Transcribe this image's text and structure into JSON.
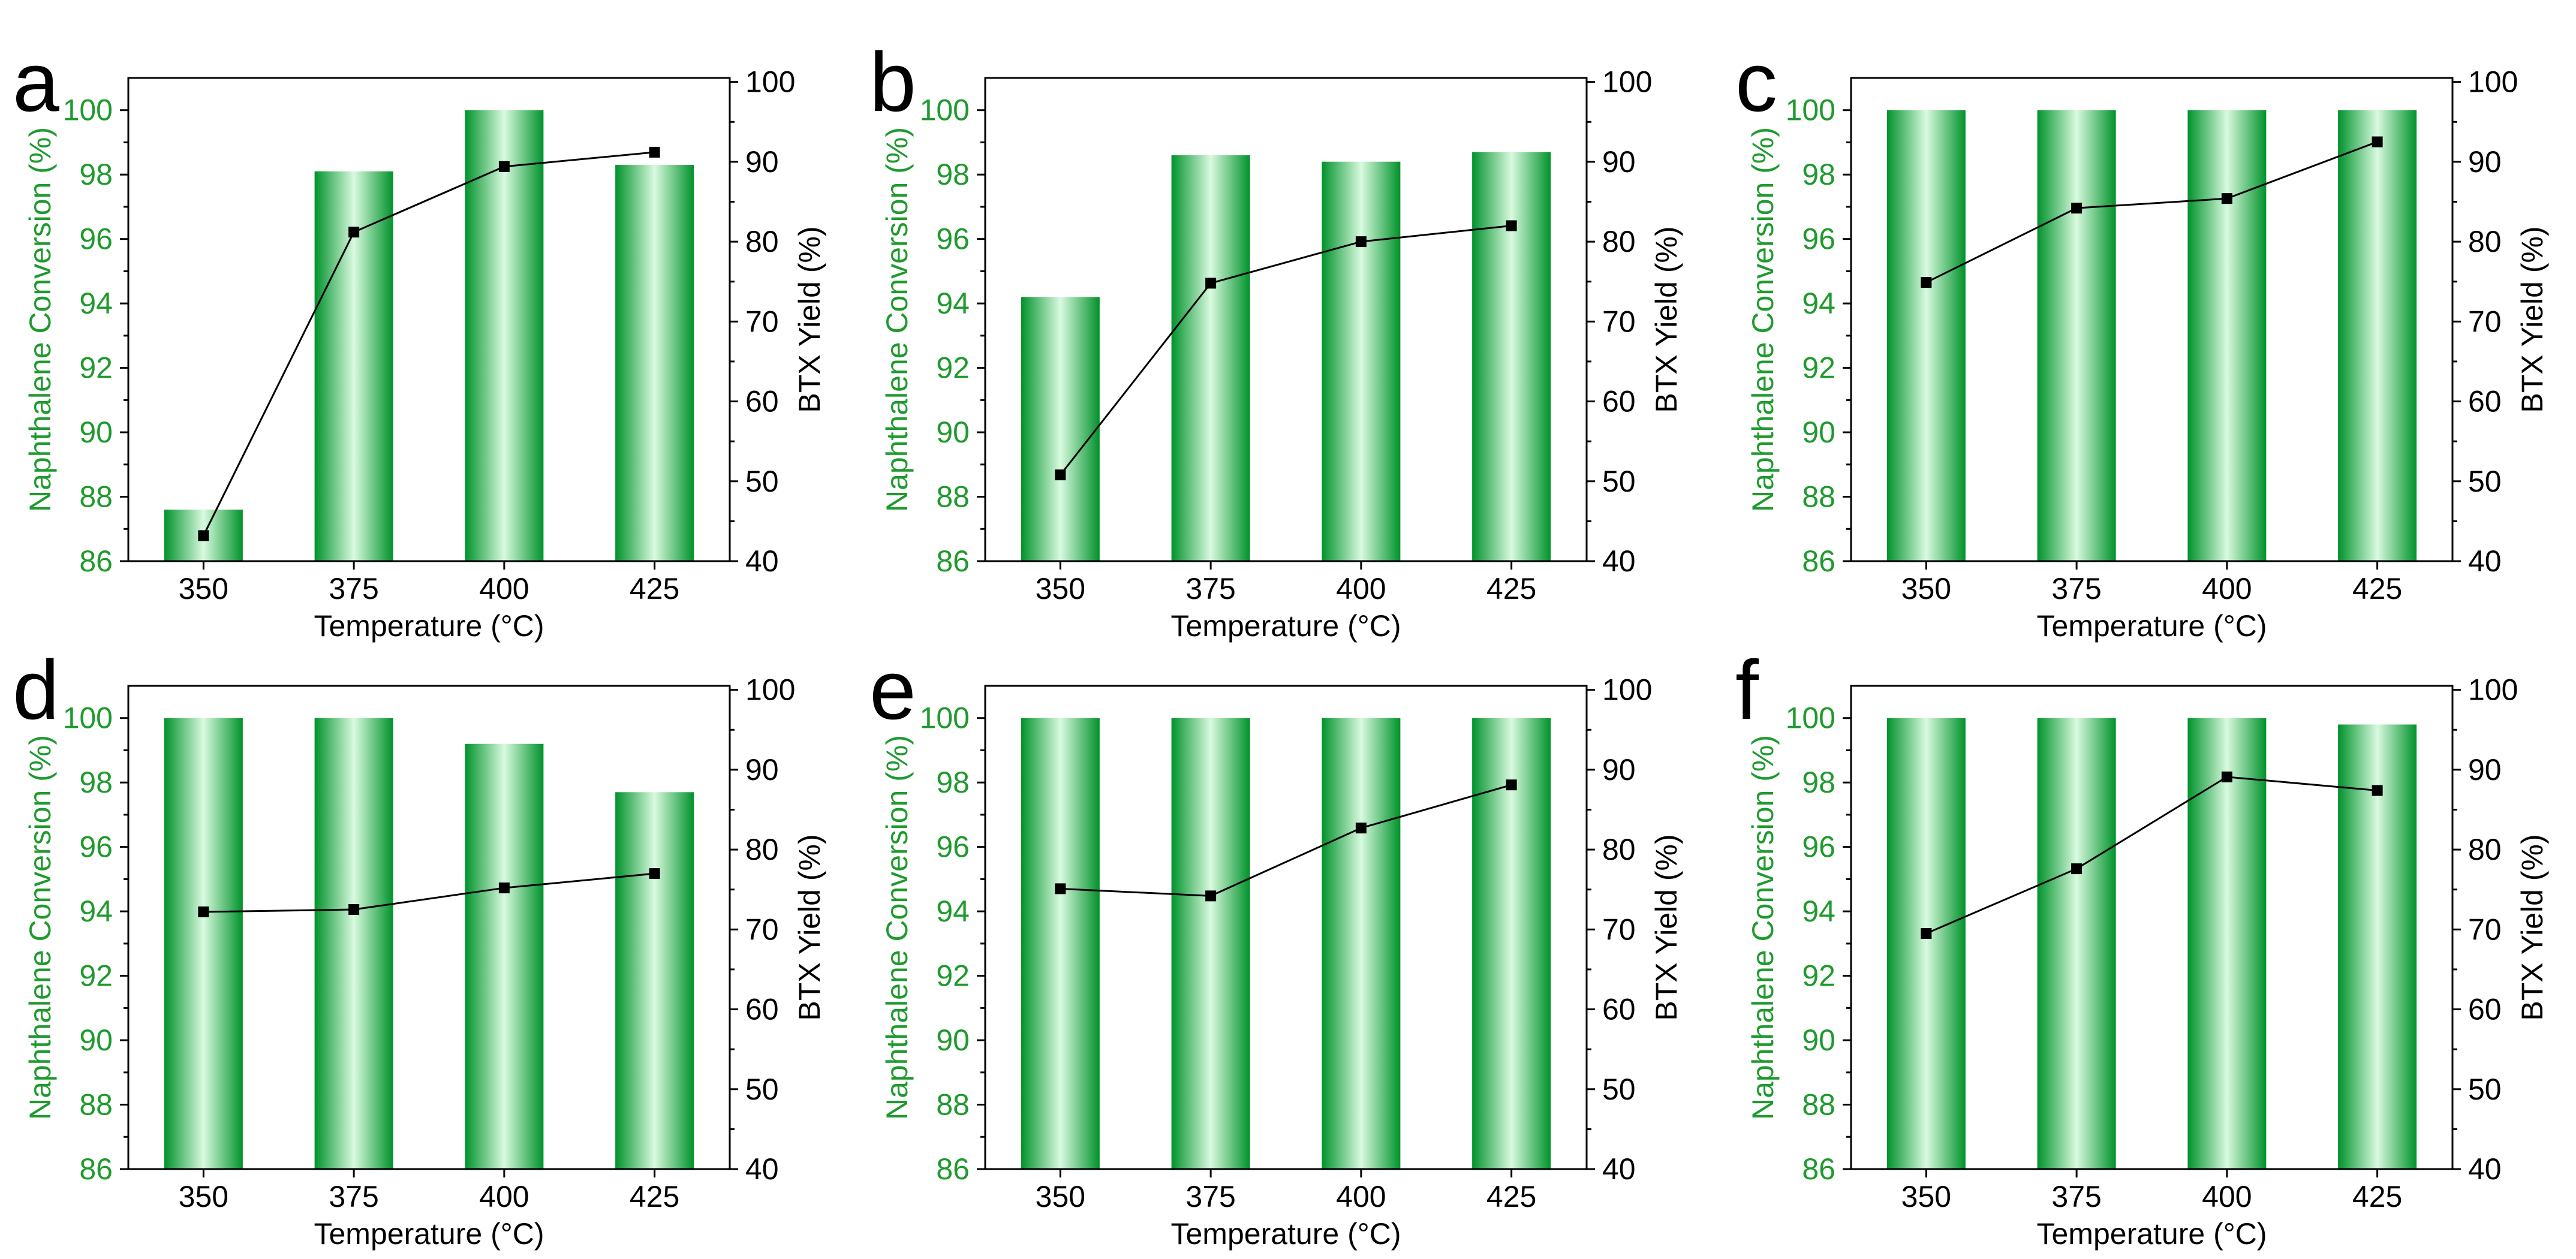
{
  "colors": {
    "bar_edge": "#00922b",
    "bar_center": "#d9fadf",
    "left_axis_text": "#1f9a2e",
    "line": "#000000"
  },
  "chart_data": [
    {
      "panel": "a",
      "type": "bar+line",
      "categories": [
        "350",
        "375",
        "400",
        "425"
      ],
      "series": [
        {
          "name": "Naphthalene Conversion (%)",
          "axis": "left",
          "type": "bar",
          "values": [
            87.6,
            98.1,
            100.0,
            98.3
          ]
        },
        {
          "name": "BTX Yield (%)",
          "axis": "right",
          "type": "line",
          "marker": "square",
          "values": [
            43.2,
            81.2,
            89.4,
            91.2
          ]
        }
      ],
      "xlabel": "Temperature (°C)",
      "ylabel_left": "Naphthalene Conversion (%)",
      "ylabel_right": "BTX Yield (%)",
      "ylim_left": [
        86,
        101
      ],
      "ylim_right": [
        40,
        100.5
      ],
      "yticks_left": [
        86,
        88,
        90,
        92,
        94,
        96,
        98,
        100
      ],
      "yticks_right": [
        40,
        50,
        60,
        70,
        80,
        90,
        100
      ]
    },
    {
      "panel": "b",
      "type": "bar+line",
      "categories": [
        "350",
        "375",
        "400",
        "425"
      ],
      "series": [
        {
          "name": "Naphthalene Conversion (%)",
          "axis": "left",
          "type": "bar",
          "values": [
            94.2,
            98.6,
            98.4,
            98.7
          ]
        },
        {
          "name": "BTX Yield (%)",
          "axis": "right",
          "type": "line",
          "marker": "square",
          "values": [
            50.8,
            74.8,
            80.0,
            82.0
          ]
        }
      ],
      "xlabel": "Temperature (°C)",
      "ylabel_left": "Naphthalene Conversion (%)",
      "ylabel_right": "BTX Yield (%)",
      "ylim_left": [
        86,
        101
      ],
      "ylim_right": [
        40,
        100.5
      ],
      "yticks_left": [
        86,
        88,
        90,
        92,
        94,
        96,
        98,
        100
      ],
      "yticks_right": [
        40,
        50,
        60,
        70,
        80,
        90,
        100
      ]
    },
    {
      "panel": "c",
      "type": "bar+line",
      "categories": [
        "350",
        "375",
        "400",
        "425"
      ],
      "series": [
        {
          "name": "Naphthalene Conversion (%)",
          "axis": "left",
          "type": "bar",
          "values": [
            100.0,
            100.0,
            100.0,
            100.0
          ]
        },
        {
          "name": "BTX Yield (%)",
          "axis": "right",
          "type": "line",
          "marker": "square",
          "values": [
            74.9,
            84.2,
            85.4,
            92.5
          ]
        }
      ],
      "xlabel": "Temperature (°C)",
      "ylabel_left": "Naphthalene Conversion (%)",
      "ylabel_right": "BTX Yield (%)",
      "ylim_left": [
        86,
        101
      ],
      "ylim_right": [
        40,
        100.5
      ],
      "yticks_left": [
        86,
        88,
        90,
        92,
        94,
        96,
        98,
        100
      ],
      "yticks_right": [
        40,
        50,
        60,
        70,
        80,
        90,
        100
      ]
    },
    {
      "panel": "d",
      "type": "bar+line",
      "categories": [
        "350",
        "375",
        "400",
        "425"
      ],
      "series": [
        {
          "name": "Naphthalene Conversion (%)",
          "axis": "left",
          "type": "bar",
          "values": [
            100.0,
            100.0,
            99.2,
            97.7
          ]
        },
        {
          "name": "BTX Yield (%)",
          "axis": "right",
          "type": "line",
          "marker": "square",
          "values": [
            72.2,
            72.5,
            75.2,
            77.0
          ]
        }
      ],
      "xlabel": "Temperature (°C)",
      "ylabel_left": "Naphthalene Conversion (%)",
      "ylabel_right": "BTX Yield (%)",
      "ylim_left": [
        86,
        101
      ],
      "ylim_right": [
        40,
        100.5
      ],
      "yticks_left": [
        86,
        88,
        90,
        92,
        94,
        96,
        98,
        100
      ],
      "yticks_right": [
        40,
        50,
        60,
        70,
        80,
        90,
        100
      ]
    },
    {
      "panel": "e",
      "type": "bar+line",
      "categories": [
        "350",
        "375",
        "400",
        "425"
      ],
      "series": [
        {
          "name": "Naphthalene Conversion (%)",
          "axis": "left",
          "type": "bar",
          "values": [
            100.0,
            100.0,
            100.0,
            100.0
          ]
        },
        {
          "name": "BTX Yield (%)",
          "axis": "right",
          "type": "line",
          "marker": "square",
          "values": [
            75.1,
            74.2,
            82.7,
            88.1
          ]
        }
      ],
      "xlabel": "Temperature (°C)",
      "ylabel_left": "Naphthalene Conversion (%)",
      "ylabel_right": "BTX Yield (%)",
      "ylim_left": [
        86,
        101
      ],
      "ylim_right": [
        40,
        100.5
      ],
      "yticks_left": [
        86,
        88,
        90,
        92,
        94,
        96,
        98,
        100
      ],
      "yticks_right": [
        40,
        50,
        60,
        70,
        80,
        90,
        100
      ]
    },
    {
      "panel": "f",
      "type": "bar+line",
      "categories": [
        "350",
        "375",
        "400",
        "425"
      ],
      "series": [
        {
          "name": "Naphthalene Conversion (%)",
          "axis": "left",
          "type": "bar",
          "values": [
            100.0,
            100.0,
            100.0,
            99.8
          ]
        },
        {
          "name": "BTX Yield (%)",
          "axis": "right",
          "type": "line",
          "marker": "square",
          "values": [
            69.5,
            77.6,
            89.1,
            87.4
          ]
        }
      ],
      "xlabel": "Temperature (°C)",
      "ylabel_left": "Naphthalene Conversion (%)",
      "ylabel_right": "BTX Yield (%)",
      "ylim_left": [
        86,
        101
      ],
      "ylim_right": [
        40,
        100.5
      ],
      "yticks_left": [
        86,
        88,
        90,
        92,
        94,
        96,
        98,
        100
      ],
      "yticks_right": [
        40,
        50,
        60,
        70,
        80,
        90,
        100
      ]
    }
  ]
}
